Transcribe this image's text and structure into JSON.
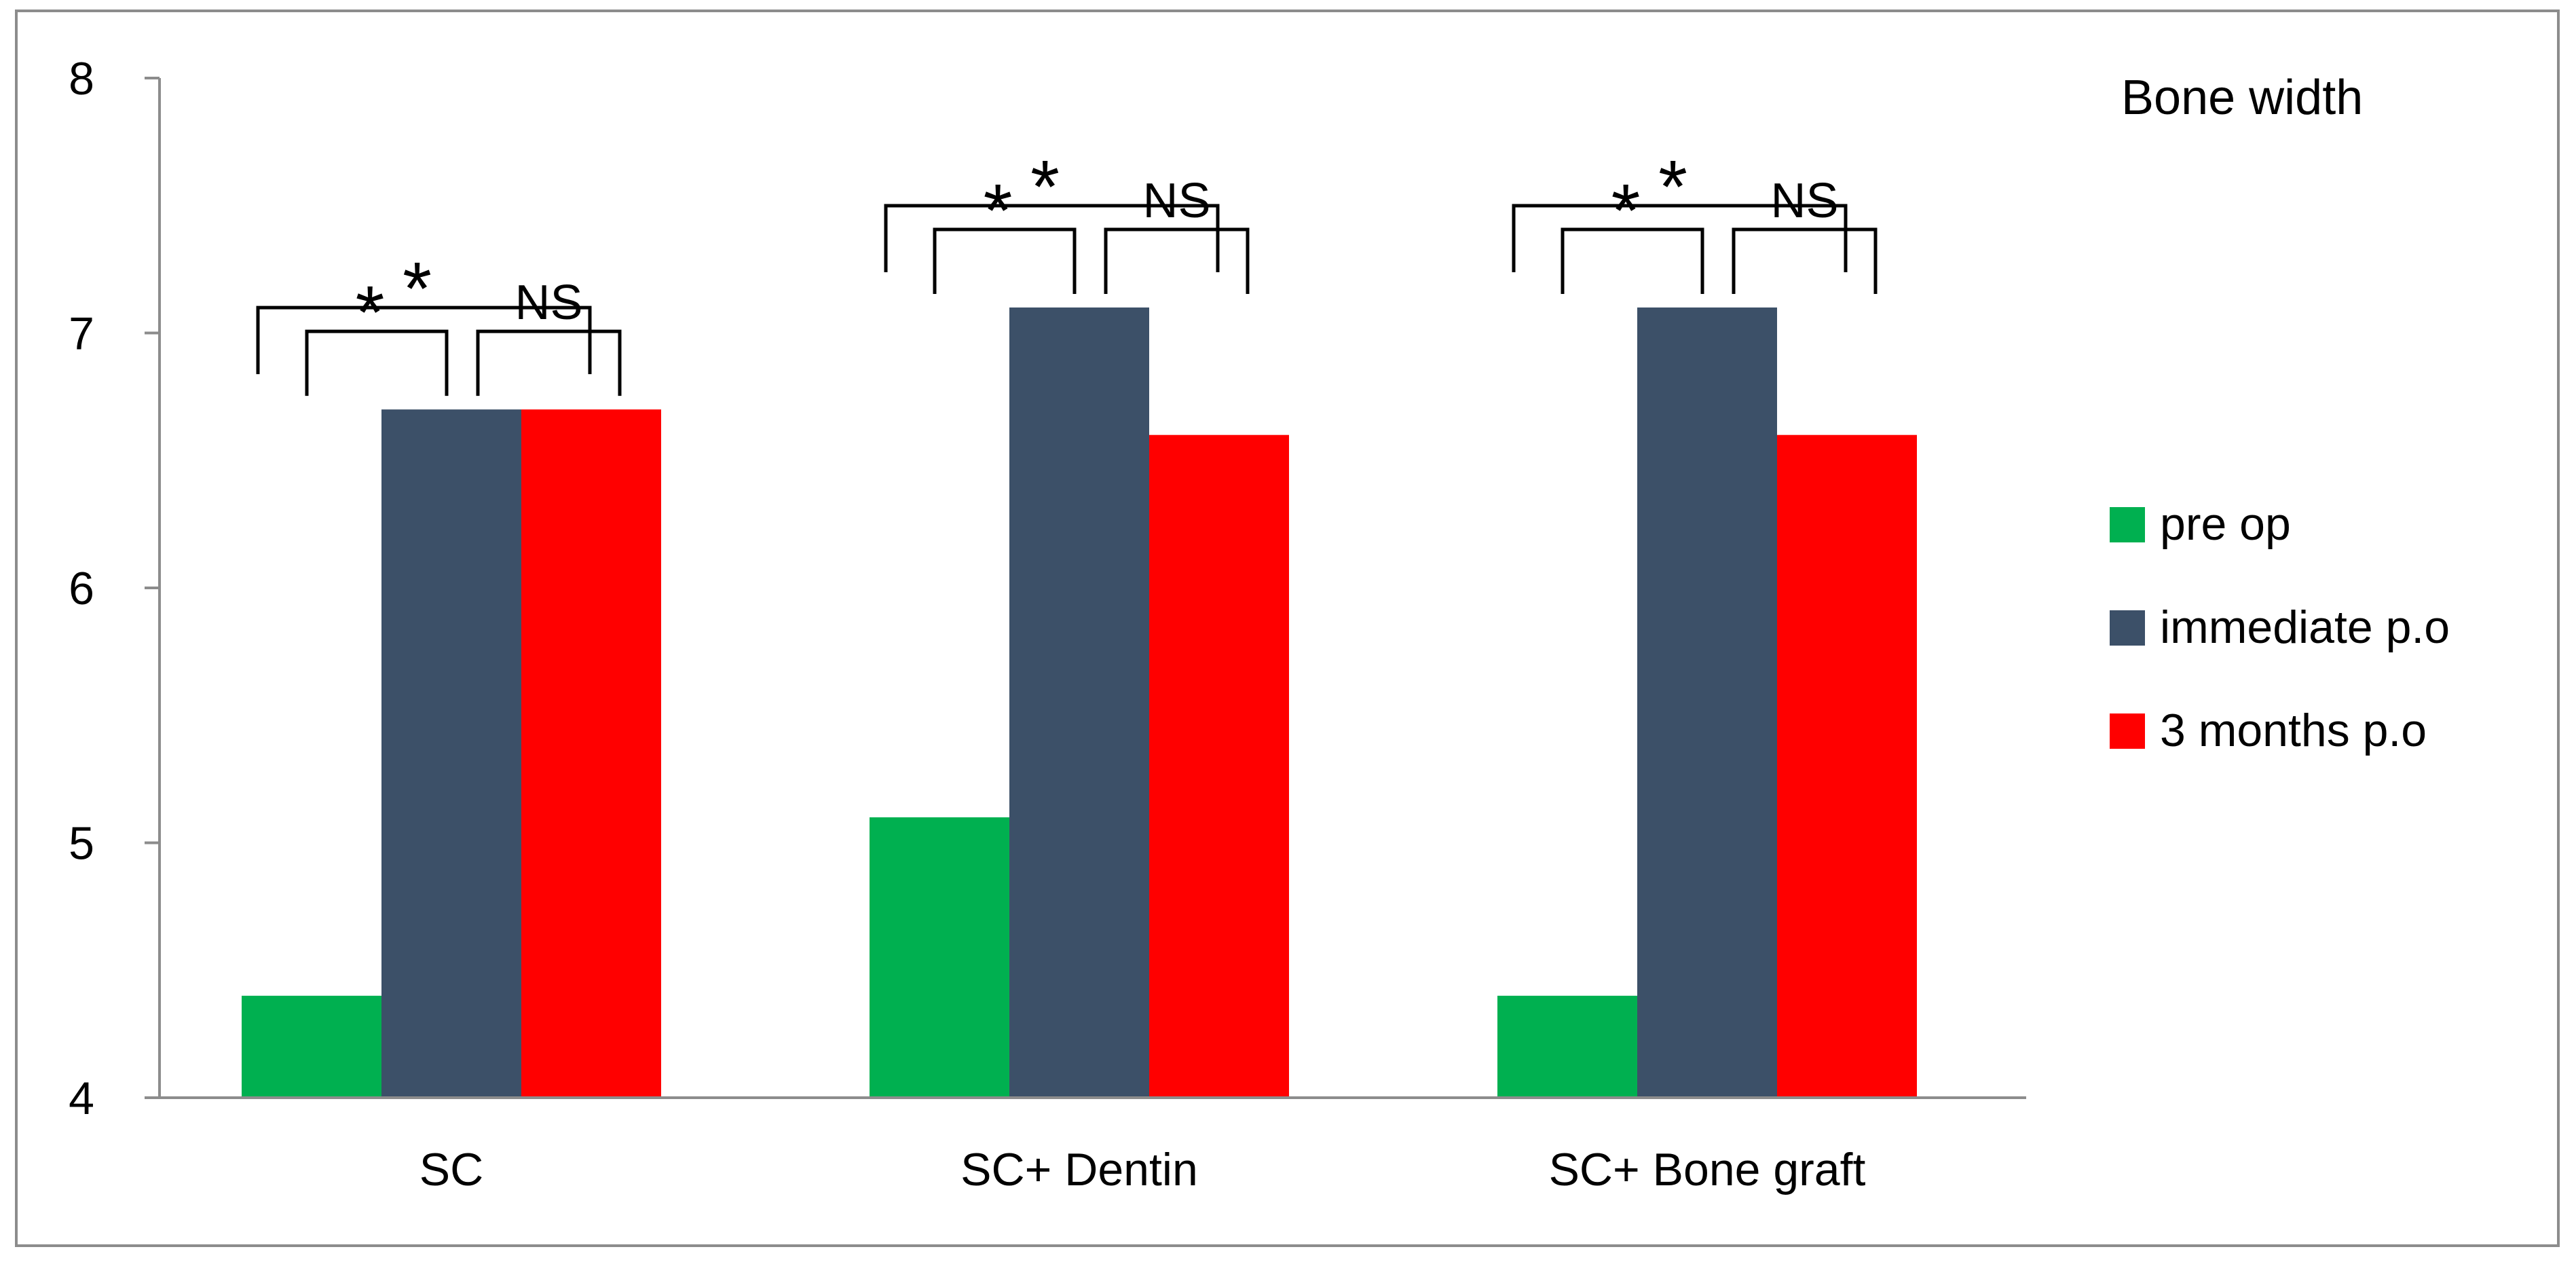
{
  "colors": {
    "pre_op": "#00b050",
    "immediate_po": "#3c5068",
    "three_months_po": "#ff0000",
    "axis": "#8c8c8c",
    "bracket": "#000000"
  },
  "chart_data": {
    "type": "bar",
    "title": "Bone width",
    "xlabel": "",
    "ylabel": "",
    "ylim": [
      4,
      8
    ],
    "yticks": [
      4,
      5,
      6,
      7,
      8
    ],
    "grid": false,
    "legend_position": "right",
    "categories": [
      "SC",
      "SC+ Dentin",
      "SC+ Bone graft"
    ],
    "series": [
      {
        "name": "pre op",
        "color_key": "pre_op",
        "values": [
          4.4,
          5.1,
          4.4
        ]
      },
      {
        "name": "immediate p.o",
        "color_key": "immediate_po",
        "values": [
          6.7,
          7.1,
          7.1
        ]
      },
      {
        "name": "3 months p.o",
        "color_key": "three_months_po",
        "values": [
          6.7,
          6.6,
          6.6
        ]
      }
    ],
    "annotations": [
      {
        "category": 0,
        "from_series": 0,
        "to_series": 1,
        "label": "*"
      },
      {
        "category": 0,
        "from_series": 1,
        "to_series": 2,
        "label": "NS"
      },
      {
        "category": 0,
        "from_series": 0,
        "to_series": 2,
        "label": "*"
      },
      {
        "category": 1,
        "from_series": 0,
        "to_series": 1,
        "label": "*"
      },
      {
        "category": 1,
        "from_series": 1,
        "to_series": 2,
        "label": "NS"
      },
      {
        "category": 1,
        "from_series": 0,
        "to_series": 2,
        "label": "*"
      },
      {
        "category": 2,
        "from_series": 0,
        "to_series": 1,
        "label": "*"
      },
      {
        "category": 2,
        "from_series": 1,
        "to_series": 2,
        "label": "NS"
      },
      {
        "category": 2,
        "from_series": 0,
        "to_series": 2,
        "label": "*"
      }
    ]
  }
}
